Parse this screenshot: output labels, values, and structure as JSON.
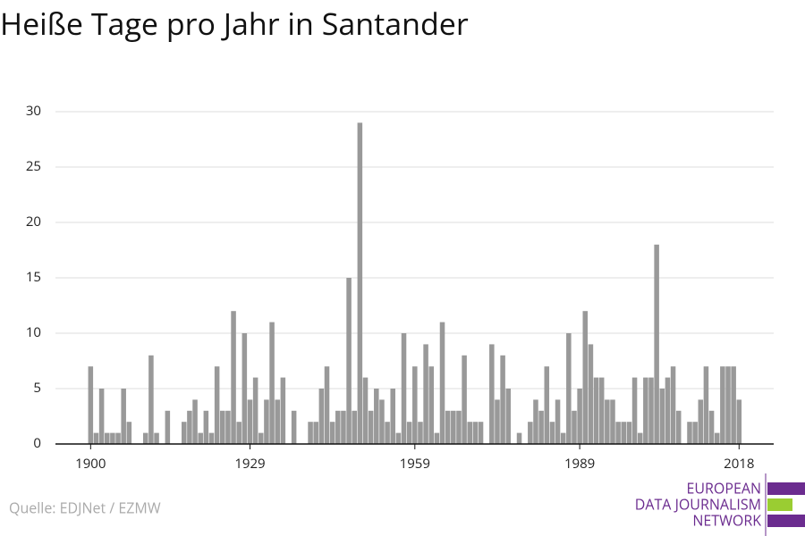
{
  "chart_data": {
    "type": "bar",
    "title": "Heiße Tage pro Jahr in Santander",
    "source": "Quelle: EDJNet / EZMW",
    "logo": [
      "EUROPEAN",
      "DATA JOURNALISM",
      "NETWORK"
    ],
    "x": [
      1900,
      1901,
      1902,
      1903,
      1904,
      1905,
      1906,
      1907,
      1908,
      1909,
      1910,
      1911,
      1912,
      1913,
      1914,
      1915,
      1916,
      1917,
      1918,
      1919,
      1920,
      1921,
      1922,
      1923,
      1924,
      1925,
      1926,
      1927,
      1928,
      1929,
      1930,
      1931,
      1932,
      1933,
      1934,
      1935,
      1936,
      1937,
      1938,
      1939,
      1940,
      1941,
      1942,
      1943,
      1944,
      1945,
      1946,
      1947,
      1948,
      1949,
      1950,
      1951,
      1952,
      1953,
      1954,
      1955,
      1956,
      1957,
      1958,
      1959,
      1960,
      1961,
      1962,
      1963,
      1964,
      1965,
      1966,
      1967,
      1968,
      1969,
      1970,
      1971,
      1972,
      1973,
      1974,
      1975,
      1976,
      1977,
      1978,
      1979,
      1980,
      1981,
      1982,
      1983,
      1984,
      1985,
      1986,
      1987,
      1988,
      1989,
      1990,
      1991,
      1992,
      1993,
      1994,
      1995,
      1996,
      1997,
      1998,
      1999,
      2000,
      2001,
      2002,
      2003,
      2004,
      2005,
      2006,
      2007,
      2008,
      2009,
      2010,
      2011,
      2012,
      2013,
      2014,
      2015,
      2016,
      2017,
      2018
    ],
    "values": [
      7,
      1,
      5,
      1,
      1,
      1,
      5,
      2,
      0,
      0,
      1,
      8,
      1,
      0,
      3,
      0,
      0,
      2,
      3,
      4,
      1,
      3,
      1,
      7,
      3,
      3,
      12,
      2,
      10,
      4,
      6,
      1,
      4,
      11,
      4,
      6,
      0,
      3,
      0,
      0,
      2,
      2,
      5,
      7,
      2,
      3,
      3,
      15,
      3,
      29,
      6,
      3,
      5,
      4,
      2,
      5,
      1,
      10,
      2,
      7,
      2,
      9,
      7,
      1,
      11,
      3,
      3,
      3,
      8,
      2,
      2,
      2,
      0,
      9,
      4,
      8,
      5,
      0,
      1,
      0,
      2,
      4,
      3,
      7,
      2,
      4,
      1,
      10,
      3,
      5,
      12,
      9,
      6,
      6,
      4,
      4,
      2,
      2,
      2,
      6,
      1,
      6,
      6,
      18,
      5,
      6,
      7,
      3,
      0,
      2,
      2,
      4,
      7,
      3,
      1,
      7,
      7,
      7,
      4
    ],
    "color": "#999999",
    "xlim": [
      1893.6,
      2024.3
    ],
    "xticks": [
      1900,
      1929,
      1959,
      1989,
      2018
    ],
    "ylim": [
      0,
      30
    ],
    "yticks": [
      0,
      5,
      10,
      15,
      20,
      25,
      30
    ],
    "grid": true
  }
}
